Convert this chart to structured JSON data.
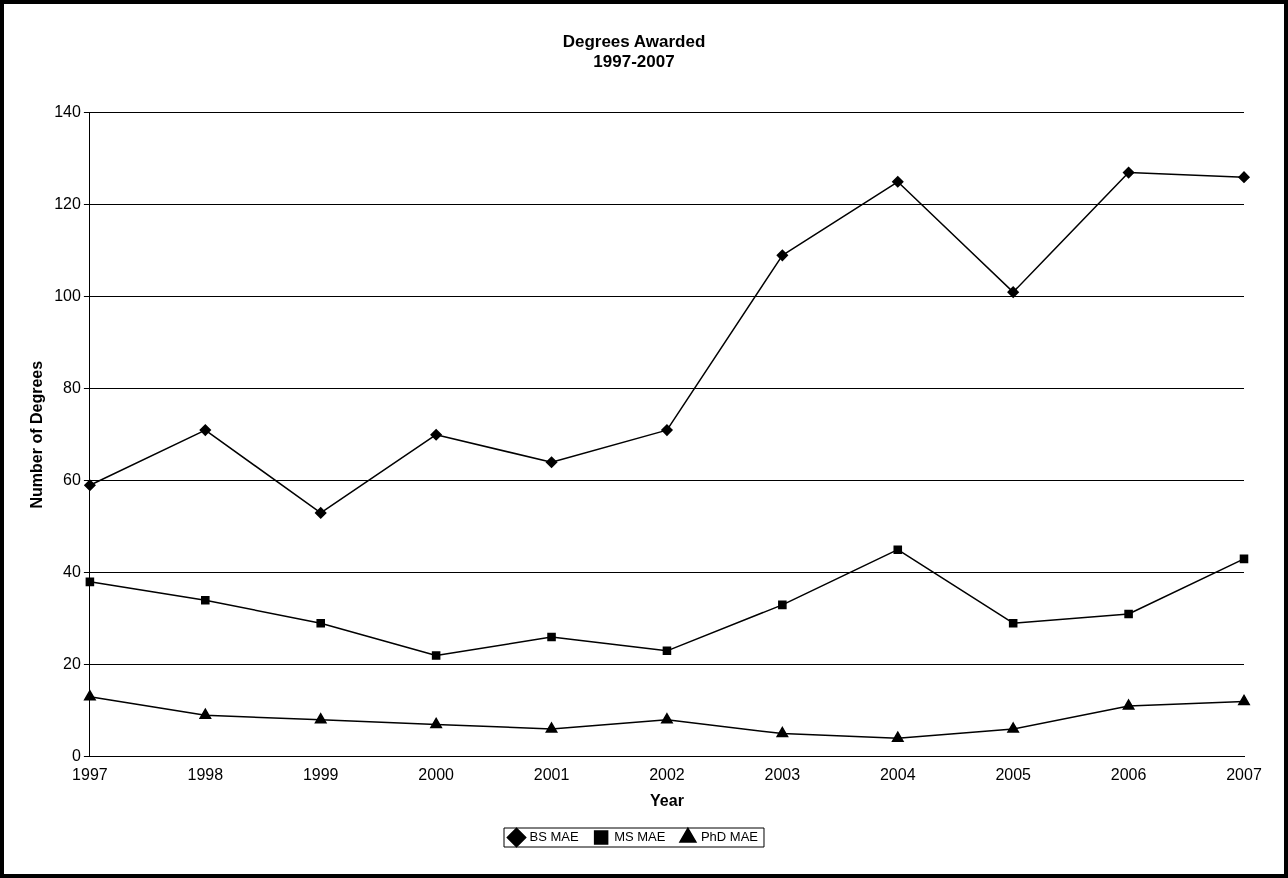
{
  "chart_data": {
    "type": "line",
    "title": "Degrees Awarded\n1997-2007",
    "xlabel": "Year",
    "ylabel": "Number of Degrees",
    "categories": [
      "1997",
      "1998",
      "1999",
      "2000",
      "2001",
      "2002",
      "2003",
      "2004",
      "2005",
      "2006",
      "2007"
    ],
    "series": [
      {
        "name": "BS MAE",
        "color": "#000000",
        "marker": "diamond",
        "values": [
          59,
          71,
          53,
          70,
          64,
          71,
          109,
          125,
          101,
          127,
          126
        ]
      },
      {
        "name": "MS MAE",
        "color": "#000000",
        "marker": "square",
        "values": [
          38,
          34,
          29,
          22,
          26,
          23,
          33,
          45,
          29,
          31,
          43
        ]
      },
      {
        "name": "PhD MAE",
        "color": "#000000",
        "marker": "triangle",
        "values": [
          13,
          9,
          8,
          7,
          6,
          8,
          5,
          4,
          6,
          11,
          12
        ]
      }
    ],
    "ylim": [
      0,
      140
    ],
    "yticks": [
      0,
      20,
      40,
      60,
      80,
      100,
      120,
      140
    ],
    "grid": "y",
    "legend": "bottom",
    "line_style": "solid"
  }
}
